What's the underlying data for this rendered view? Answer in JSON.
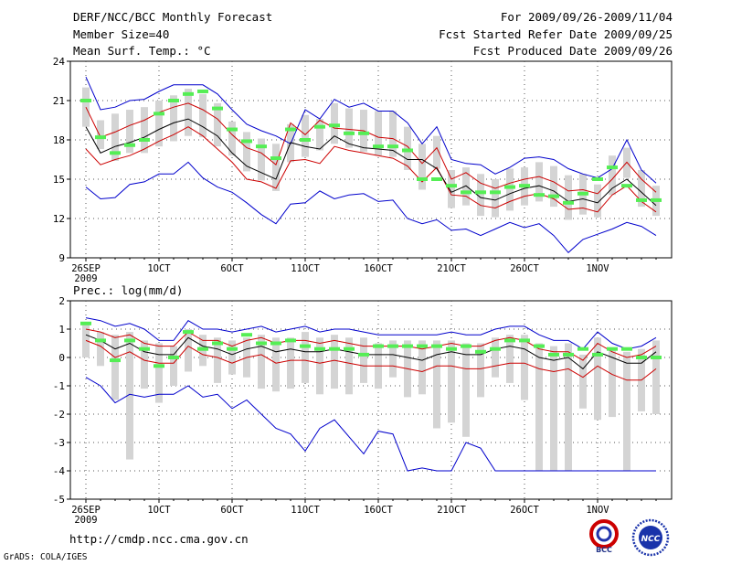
{
  "header": {
    "left": [
      "DERF/NCC/BCC Monthly Forecast",
      "Member Size=40",
      "Mean Surf. Temp.: °C"
    ],
    "right": [
      "For 2009/09/26-2009/11/04",
      "Fcst Started Refer Date 2009/09/25",
      "Fcst Produced Date 2009/09/26"
    ]
  },
  "footer": {
    "url": "http://cmdp.ncc.cma.gov.cn",
    "credit": "GrADS: COLA/IGES",
    "logo_left": "BCC",
    "logo_right": "NCC"
  },
  "colors": {
    "max_min": "#0000cc",
    "spread": "#cc0000",
    "mean": "#000000",
    "box": "#d4d4d4",
    "mark": "#55ee55"
  },
  "chart_data": [
    {
      "type": "line",
      "title": "Mean Surf. Temp.: °C",
      "ylim": [
        9,
        24
      ],
      "yticks": [
        9,
        12,
        15,
        18,
        21,
        24
      ],
      "xticks": [
        "26SEP",
        "1OCT",
        "6OCT",
        "11OCT",
        "16OCT",
        "21OCT",
        "26OCT",
        "1NOV"
      ],
      "year_label": "2009",
      "days": 40,
      "series": [
        {
          "name": "max",
          "values": [
            22.8,
            20.3,
            20.5,
            21,
            21.1,
            21.7,
            22.2,
            22.2,
            22.2,
            21.5,
            20.3,
            19.2,
            18.7,
            18.3,
            17.7,
            20.3,
            19.6,
            21.1,
            20.5,
            20.8,
            20.2,
            20.2,
            19.3,
            17.7,
            19,
            16.5,
            16.2,
            16.1,
            15.4,
            15.9,
            16.6,
            16.7,
            16.5,
            15.8,
            15.4,
            15.1,
            15.8,
            18,
            15.7,
            14.7
          ]
        },
        {
          "name": "upper",
          "values": [
            20.5,
            18.2,
            18.6,
            19.1,
            19.5,
            20.1,
            20.5,
            20.8,
            20.3,
            19.6,
            18.4,
            17.4,
            17,
            16.1,
            19.3,
            18.4,
            19.5,
            18.9,
            18.8,
            18.7,
            18.2,
            18.1,
            17.5,
            16.2,
            17.4,
            15,
            15.5,
            14.7,
            14.3,
            14.7,
            15,
            15.2,
            14.8,
            14.1,
            14.2,
            13.9,
            15,
            16.3,
            15,
            14
          ]
        },
        {
          "name": "mean",
          "values": [
            19,
            17,
            17.5,
            17.8,
            18.2,
            18.8,
            19.3,
            19.6,
            19,
            18.3,
            17,
            16,
            15.5,
            15,
            17.8,
            17.5,
            17.3,
            18.3,
            17.7,
            17.4,
            17.3,
            17.2,
            16.5,
            16.5,
            15.8,
            14,
            14.5,
            13.6,
            13.4,
            13.9,
            14.3,
            14.5,
            14.1,
            13.3,
            13.5,
            13.2,
            14.3,
            15,
            14,
            13
          ]
        },
        {
          "name": "lower",
          "values": [
            17.3,
            16.1,
            16.5,
            16.8,
            17.3,
            17.9,
            18.4,
            19,
            18.3,
            17.3,
            16.3,
            15,
            14.8,
            14.3,
            16.4,
            16.5,
            16.2,
            17.5,
            17.2,
            17,
            16.8,
            16.6,
            16,
            14.8,
            15.9,
            13.8,
            13.7,
            13,
            12.8,
            13.3,
            13.7,
            13.9,
            13.5,
            12.7,
            12.8,
            12.5,
            13.8,
            14.5,
            13.3,
            12.5
          ]
        },
        {
          "name": "min",
          "values": [
            14.4,
            13.5,
            13.6,
            14.6,
            14.8,
            15.4,
            15.4,
            16.3,
            15.1,
            14.4,
            14,
            13.2,
            12.3,
            11.6,
            13.1,
            13.2,
            14.1,
            13.5,
            13.8,
            13.9,
            13.3,
            13.4,
            12,
            11.6,
            11.9,
            11.1,
            11.2,
            10.7,
            11.2,
            11.7,
            11.3,
            11.6,
            10.7,
            9.4,
            10.4,
            10.8,
            11.2,
            11.7,
            11.4,
            10.7
          ]
        },
        {
          "name": "box_top",
          "values": [
            22,
            19.5,
            20,
            20.3,
            20.5,
            21,
            21.4,
            21.9,
            21.5,
            20.8,
            19.4,
            18.6,
            18.1,
            17.7,
            19.2,
            19.9,
            19.6,
            20.8,
            20.4,
            20.3,
            20.2,
            20.2,
            19,
            17.7,
            18.3,
            15.7,
            15.9,
            15.4,
            15,
            15.8,
            15.9,
            16.3,
            16,
            15.3,
            15.4,
            14.6,
            16.8,
            17.4,
            15.7,
            14.5
          ]
        },
        {
          "name": "box_bottom",
          "values": [
            19,
            17.3,
            16.4,
            17,
            17,
            17.5,
            17.9,
            18.3,
            18.2,
            17.5,
            16.8,
            15.6,
            14.9,
            14.1,
            16.3,
            16.7,
            17.2,
            17.7,
            17.4,
            17.1,
            16.8,
            16.7,
            15.7,
            14.2,
            15.8,
            12.8,
            13,
            12.2,
            12.1,
            12.6,
            13,
            13.3,
            12.9,
            11.9,
            12.3,
            12.1,
            13.8,
            15.1,
            12.9,
            12.2
          ]
        },
        {
          "name": "mark",
          "values": [
            21,
            18.2,
            17,
            17.6,
            18,
            20,
            21,
            21.5,
            21.7,
            20.4,
            18.8,
            17.9,
            17.5,
            16.6,
            18.8,
            18,
            19,
            19.1,
            18.5,
            18.5,
            17.5,
            17.5,
            17.2,
            15,
            15,
            14.5,
            14,
            14,
            14,
            14.4,
            14.5,
            13.8,
            13.7,
            13.2,
            13.9,
            15,
            15.9,
            14.5,
            13.4,
            13.4
          ]
        }
      ]
    },
    {
      "type": "line",
      "title": "Prec.: log(mm/d)",
      "ylim": [
        -5,
        2
      ],
      "yticks": [
        -5,
        -4,
        -3,
        -2,
        -1,
        0,
        1,
        2
      ],
      "xticks": [
        "26SEP",
        "1OCT",
        "6OCT",
        "11OCT",
        "16OCT",
        "21OCT",
        "26OCT",
        "1NOV"
      ],
      "year_label": "2009",
      "days": 40,
      "series": [
        {
          "name": "max",
          "values": [
            1.4,
            1.3,
            1.1,
            1.2,
            1,
            0.6,
            0.6,
            1.3,
            1,
            1,
            0.9,
            1,
            1.1,
            0.9,
            1,
            1.1,
            0.9,
            1,
            1,
            0.9,
            0.8,
            0.8,
            0.8,
            0.8,
            0.8,
            0.9,
            0.8,
            0.8,
            1,
            1.1,
            1.1,
            0.8,
            0.6,
            0.6,
            0.3,
            0.9,
            0.5,
            0.3,
            0.4,
            0.7
          ]
        },
        {
          "name": "upper",
          "values": [
            1,
            0.9,
            0.7,
            0.8,
            0.5,
            0.4,
            0.4,
            0.9,
            0.6,
            0.6,
            0.4,
            0.6,
            0.7,
            0.5,
            0.6,
            0.6,
            0.5,
            0.6,
            0.5,
            0.4,
            0.4,
            0.4,
            0.4,
            0.3,
            0.4,
            0.5,
            0.4,
            0.4,
            0.6,
            0.7,
            0.6,
            0.3,
            0.2,
            0.2,
            -0.1,
            0.5,
            0.2,
            0,
            0.1,
            0.4
          ]
        },
        {
          "name": "mean",
          "values": [
            0.8,
            0.6,
            0.3,
            0.5,
            0.2,
            0.1,
            0.1,
            0.7,
            0.4,
            0.3,
            0.1,
            0.3,
            0.4,
            0.2,
            0.3,
            0.2,
            0.2,
            0.3,
            0.2,
            0.1,
            0.1,
            0.1,
            0,
            -0.1,
            0.1,
            0.2,
            0.1,
            0.1,
            0.3,
            0.4,
            0.3,
            0,
            -0.1,
            0,
            -0.4,
            0.2,
            0,
            -0.2,
            -0.2,
            0.2
          ]
        },
        {
          "name": "lower",
          "values": [
            0.6,
            0.4,
            0,
            0.2,
            -0.1,
            -0.2,
            -0.2,
            0.4,
            0.1,
            0,
            -0.2,
            0,
            0.1,
            -0.2,
            -0.1,
            -0.1,
            -0.2,
            -0.1,
            -0.2,
            -0.3,
            -0.3,
            -0.3,
            -0.4,
            -0.5,
            -0.3,
            -0.3,
            -0.4,
            -0.4,
            -0.3,
            -0.2,
            -0.2,
            -0.4,
            -0.5,
            -0.4,
            -0.7,
            -0.3,
            -0.6,
            -0.8,
            -0.8,
            -0.4
          ]
        },
        {
          "name": "min",
          "values": [
            -0.7,
            -1,
            -1.6,
            -1.3,
            -1.4,
            -1.3,
            -1.3,
            -1,
            -1.4,
            -1.3,
            -1.8,
            -1.5,
            -2,
            -2.5,
            -2.7,
            -3.3,
            -2.5,
            -2.2,
            -2.8,
            -3.4,
            -2.6,
            -2.7,
            -4,
            -3.9,
            -4,
            -4,
            -3,
            -3.2,
            -4,
            -4,
            -4,
            -4,
            -4,
            -4,
            -4,
            -4,
            -4,
            -4,
            -4,
            -4
          ]
        },
        {
          "name": "box_top",
          "values": [
            1.2,
            0.9,
            0.8,
            0.9,
            0.6,
            0.5,
            0.4,
            1,
            0.8,
            0.7,
            0.6,
            0.7,
            0.8,
            0.7,
            0.7,
            0.9,
            0.7,
            0.8,
            0.7,
            0.7,
            0.5,
            0.6,
            0.6,
            0.6,
            0.6,
            0.6,
            0.5,
            0.5,
            0.7,
            0.8,
            0.8,
            0.5,
            0.4,
            0.5,
            0.1,
            0.7,
            0.3,
            0.2,
            0.3,
            0.6
          ]
        },
        {
          "name": "box_bottom",
          "values": [
            0,
            -0.3,
            -1.5,
            -3.6,
            -1.1,
            -1.6,
            -1,
            -0.5,
            -0.3,
            -0.9,
            -0.6,
            -0.7,
            -1.1,
            -1.2,
            -1.1,
            -0.9,
            -1.3,
            -1.1,
            -1.3,
            -0.9,
            -1.1,
            -0.7,
            -1.4,
            -1.3,
            -2.5,
            -2.3,
            -2.8,
            -1.4,
            -0.7,
            -0.9,
            -1.5,
            -4,
            -4,
            -4,
            -1.8,
            -2.2,
            -2.1,
            -4,
            -1.9,
            -2
          ]
        },
        {
          "name": "mark",
          "values": [
            1.2,
            0.6,
            -0.1,
            0.6,
            0.3,
            -0.3,
            0,
            0.9,
            0.3,
            0.5,
            0.3,
            0.8,
            0.5,
            0.5,
            0.6,
            0.4,
            0.3,
            0.3,
            0.3,
            0.1,
            0.4,
            0.4,
            0.4,
            0.4,
            0.4,
            0.3,
            0.4,
            0.2,
            0.3,
            0.6,
            0.6,
            0.4,
            0.1,
            0.1,
            0.3,
            0.1,
            0.3,
            0.3,
            0,
            0
          ]
        }
      ]
    }
  ]
}
